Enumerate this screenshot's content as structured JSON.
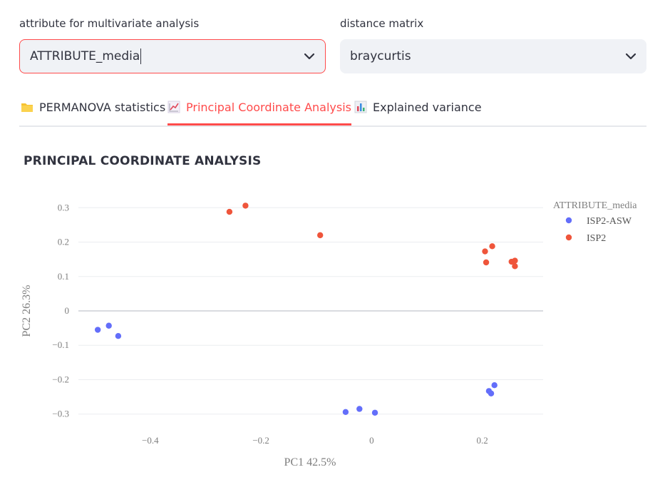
{
  "controls": {
    "attribute_label": "attribute for multivariate analysis",
    "attribute_value": "ATTRIBUTE_media",
    "distance_label": "distance matrix",
    "distance_value": "braycurtis"
  },
  "tabs": [
    {
      "label": "PERMANOVA statistics",
      "icon": "folder-icon",
      "active": false
    },
    {
      "label": "Principal Coordinate Analysis",
      "icon": "chart-line-icon",
      "active": true
    },
    {
      "label": "Explained variance",
      "icon": "bar-chart-icon",
      "active": false
    }
  ],
  "colors": {
    "accent": "#ff4b4b",
    "ISP2-ASW": "#636efa",
    "ISP2": "#ef553b"
  },
  "chart_data": {
    "type": "scatter",
    "title": "PRINCIPAL COORDINATE ANALYSIS",
    "xlabel": "PC1 42.5%",
    "ylabel": "PC2 26.3%",
    "xlim": [
      -0.53,
      0.31
    ],
    "ylim": [
      -0.34,
      0.34
    ],
    "xticks": [
      -0.4,
      -0.2,
      0,
      0.2
    ],
    "xtick_labels": [
      "−0.4",
      "−0.2",
      "0",
      "0.2"
    ],
    "yticks": [
      0.3,
      0.2,
      0.1,
      0,
      -0.1,
      -0.2,
      -0.3
    ],
    "ytick_labels": [
      "0.3",
      "0.2",
      "0.1",
      "0",
      "−0.1",
      "−0.2",
      "−0.3"
    ],
    "grid": true,
    "legend_title": "ATTRIBUTE_media",
    "legend_position": "top-right",
    "series": [
      {
        "name": "ISP2-ASW",
        "color": "#636efa",
        "points": [
          [
            -0.495,
            -0.055
          ],
          [
            -0.475,
            -0.043
          ],
          [
            -0.458,
            -0.073
          ],
          [
            -0.047,
            -0.294
          ],
          [
            -0.022,
            -0.285
          ],
          [
            0.006,
            -0.296
          ],
          [
            0.212,
            -0.233
          ],
          [
            0.216,
            -0.24
          ],
          [
            0.222,
            -0.216
          ]
        ]
      },
      {
        "name": "ISP2",
        "color": "#ef553b",
        "points": [
          [
            -0.257,
            0.288
          ],
          [
            -0.228,
            0.306
          ],
          [
            -0.093,
            0.22
          ],
          [
            0.205,
            0.173
          ],
          [
            0.218,
            0.188
          ],
          [
            0.207,
            0.141
          ],
          [
            0.253,
            0.143
          ],
          [
            0.259,
            0.146
          ],
          [
            0.259,
            0.13
          ]
        ]
      }
    ]
  }
}
